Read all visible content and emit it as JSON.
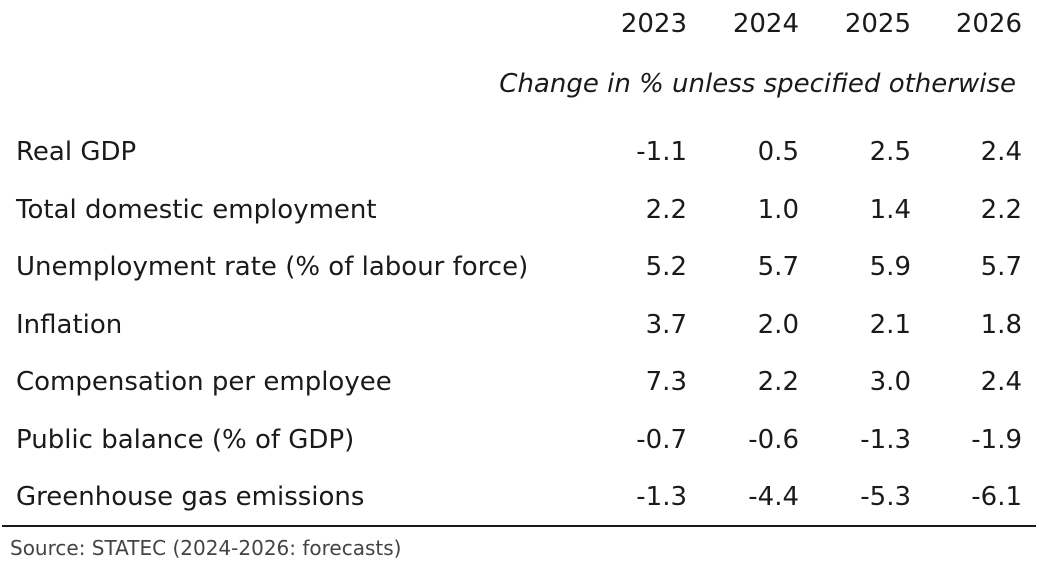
{
  "chart_data": {
    "type": "table",
    "title": "",
    "subtitle": "Change in % unless specified otherwise",
    "columns": [
      "2023",
      "2024",
      "2025",
      "2026"
    ],
    "rows": [
      {
        "label": "Real GDP",
        "values": [
          "-1.1",
          "0.5",
          "2.5",
          "2.4"
        ]
      },
      {
        "label": "Total domestic employment",
        "values": [
          "2.2",
          "1.0",
          "1.4",
          "2.2"
        ]
      },
      {
        "label": "Unemployment rate (% of labour force)",
        "values": [
          "5.2",
          "5.7",
          "5.9",
          "5.7"
        ]
      },
      {
        "label": "Inflation",
        "values": [
          "3.7",
          "2.0",
          "2.1",
          "1.8"
        ]
      },
      {
        "label": "Compensation per employee",
        "values": [
          "7.3",
          "2.2",
          "3.0",
          "2.4"
        ]
      },
      {
        "label": "Public balance (% of GDP)",
        "values": [
          "-0.7",
          "-0.6",
          "-1.3",
          "-1.9"
        ]
      },
      {
        "label": "Greenhouse gas emissions",
        "values": [
          "-1.3",
          "-4.4",
          "-5.3",
          "-6.1"
        ]
      }
    ],
    "source": "Source: STATEC (2024-2026: forecasts)"
  }
}
